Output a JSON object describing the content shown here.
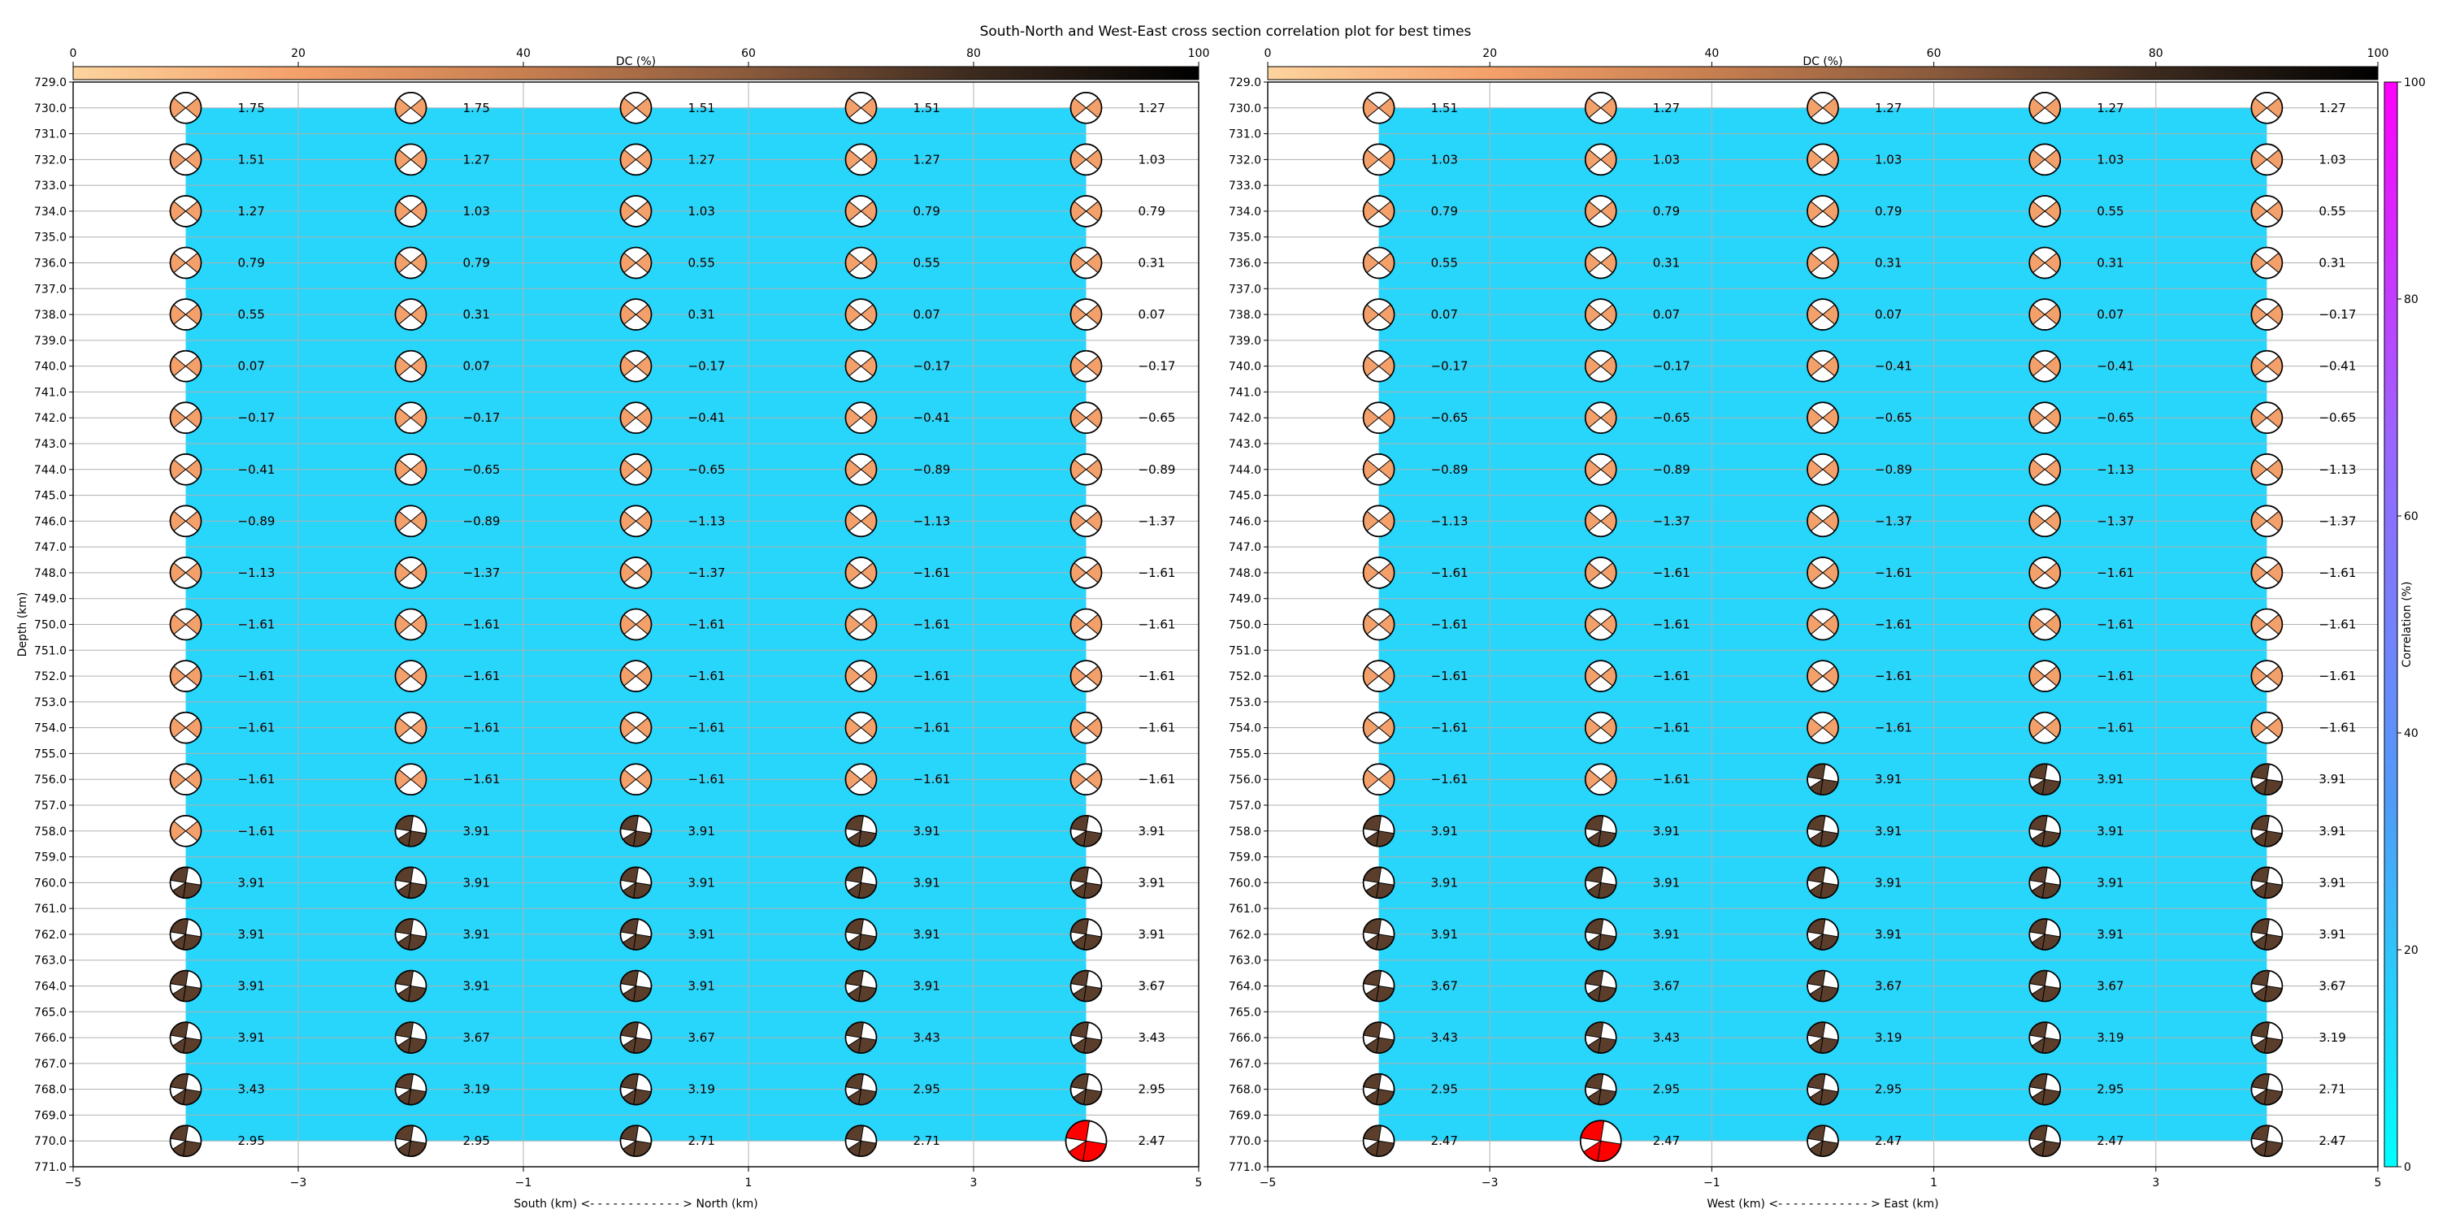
{
  "title": "South-North and West-East cross section correlation plot for best times",
  "colorbars": {
    "dc_label": "DC (%)",
    "dc_ticks": [
      "0",
      "20",
      "40",
      "60",
      "80",
      "100"
    ],
    "dc_colors": [
      "#fdd49e",
      "#f4a06a",
      "#c77f50",
      "#8a5a3c",
      "#3c2a1e",
      "#000000"
    ],
    "corr_label": "Correlation (%)",
    "corr_ticks": [
      "0",
      "20",
      "40",
      "60",
      "80",
      "100"
    ],
    "corr_colors": [
      "#00ffff",
      "#4f9cf8",
      "#9966ff",
      "#ff00ff"
    ]
  },
  "colors": {
    "section_fill": "#29d6fb",
    "beachball_light": "#f4a06a",
    "beachball_dark": "#5a3e2b",
    "beachball_best": "#ff0000"
  },
  "chart_data": [
    {
      "type": "scatter",
      "title": "South-North and West-East cross section correlation plot for best times",
      "xlabel": "South (km) <- - - - - - - - - - - - > North (km)",
      "ylabel": "Depth (km)",
      "xlim": [
        -5,
        5
      ],
      "ylim": [
        771,
        729
      ],
      "x_ticks": [
        "-5",
        "-3",
        "-1",
        "1",
        "3",
        "5"
      ],
      "x_tick_values": [
        -5,
        -3,
        -1,
        1,
        3,
        5
      ],
      "y_ticks": [
        "729.0",
        "730.0",
        "731.0",
        "732.0",
        "733.0",
        "734.0",
        "735.0",
        "736.0",
        "737.0",
        "738.0",
        "739.0",
        "740.0",
        "741.0",
        "742.0",
        "743.0",
        "744.0",
        "745.0",
        "746.0",
        "747.0",
        "748.0",
        "749.0",
        "750.0",
        "751.0",
        "752.0",
        "753.0",
        "754.0",
        "755.0",
        "756.0",
        "757.0",
        "758.0",
        "759.0",
        "760.0",
        "761.0",
        "762.0",
        "763.0",
        "764.0",
        "765.0",
        "766.0",
        "767.0",
        "768.0",
        "769.0",
        "770.0",
        "771.0"
      ],
      "grid": true,
      "columns_x": [
        -4,
        -2,
        0,
        2,
        4
      ],
      "depths": [
        730,
        732,
        734,
        736,
        738,
        740,
        742,
        744,
        746,
        748,
        750,
        752,
        754,
        756,
        758,
        760,
        762,
        764,
        766,
        768,
        770
      ],
      "labels": [
        [
          "1.75",
          "1.75",
          "1.51",
          "1.51",
          "1.27"
        ],
        [
          "1.51",
          "1.27",
          "1.27",
          "1.27",
          "1.03"
        ],
        [
          "1.27",
          "1.03",
          "1.03",
          "0.79",
          "0.79"
        ],
        [
          "0.79",
          "0.79",
          "0.55",
          "0.55",
          "0.31"
        ],
        [
          "0.55",
          "0.31",
          "0.31",
          "0.07",
          "0.07"
        ],
        [
          "0.07",
          "0.07",
          "-0.17",
          "-0.17",
          "-0.17"
        ],
        [
          "-0.17",
          "-0.17",
          "-0.41",
          "-0.41",
          "-0.65"
        ],
        [
          "-0.41",
          "-0.65",
          "-0.65",
          "-0.89",
          "-0.89"
        ],
        [
          "-0.89",
          "-0.89",
          "-1.13",
          "-1.13",
          "-1.37"
        ],
        [
          "-1.13",
          "-1.37",
          "-1.37",
          "-1.61",
          "-1.61"
        ],
        [
          "-1.61",
          "-1.61",
          "-1.61",
          "-1.61",
          "-1.61"
        ],
        [
          "-1.61",
          "-1.61",
          "-1.61",
          "-1.61",
          "-1.61"
        ],
        [
          "-1.61",
          "-1.61",
          "-1.61",
          "-1.61",
          "-1.61"
        ],
        [
          "-1.61",
          "-1.61",
          "-1.61",
          "-1.61",
          "-1.61"
        ],
        [
          "-1.61",
          "3.91",
          "3.91",
          "3.91",
          "3.91"
        ],
        [
          "3.91",
          "3.91",
          "3.91",
          "3.91",
          "3.91"
        ],
        [
          "3.91",
          "3.91",
          "3.91",
          "3.91",
          "3.91"
        ],
        [
          "3.91",
          "3.91",
          "3.91",
          "3.91",
          "3.67"
        ],
        [
          "3.91",
          "3.67",
          "3.67",
          "3.43",
          "3.43"
        ],
        [
          "3.43",
          "3.19",
          "3.19",
          "2.95",
          "2.95"
        ],
        [
          "2.95",
          "2.95",
          "2.71",
          "2.71",
          "2.47"
        ]
      ],
      "best": [
        20,
        4
      ]
    },
    {
      "type": "scatter",
      "xlabel": "West (km) <- - - - - - - - - - - - > East (km)",
      "xlim": [
        -5,
        5
      ],
      "ylim": [
        771,
        729
      ],
      "x_ticks": [
        "-5",
        "-3",
        "-1",
        "1",
        "3",
        "5"
      ],
      "x_tick_values": [
        -5,
        -3,
        -1,
        1,
        3,
        5
      ],
      "y_ticks": [
        "729.0",
        "730.0",
        "731.0",
        "732.0",
        "733.0",
        "734.0",
        "735.0",
        "736.0",
        "737.0",
        "738.0",
        "739.0",
        "740.0",
        "741.0",
        "742.0",
        "743.0",
        "744.0",
        "745.0",
        "746.0",
        "747.0",
        "748.0",
        "749.0",
        "750.0",
        "751.0",
        "752.0",
        "753.0",
        "754.0",
        "755.0",
        "756.0",
        "757.0",
        "758.0",
        "759.0",
        "760.0",
        "761.0",
        "762.0",
        "763.0",
        "764.0",
        "765.0",
        "766.0",
        "767.0",
        "768.0",
        "769.0",
        "770.0",
        "771.0"
      ],
      "grid": true,
      "columns_x": [
        -4,
        -2,
        0,
        2,
        4
      ],
      "depths": [
        730,
        732,
        734,
        736,
        738,
        740,
        742,
        744,
        746,
        748,
        750,
        752,
        754,
        756,
        758,
        760,
        762,
        764,
        766,
        768,
        770
      ],
      "labels": [
        [
          "1.51",
          "1.27",
          "1.27",
          "1.27",
          "1.27"
        ],
        [
          "1.03",
          "1.03",
          "1.03",
          "1.03",
          "1.03"
        ],
        [
          "0.79",
          "0.79",
          "0.79",
          "0.55",
          "0.55"
        ],
        [
          "0.55",
          "0.31",
          "0.31",
          "0.31",
          "0.31"
        ],
        [
          "0.07",
          "0.07",
          "0.07",
          "0.07",
          "-0.17"
        ],
        [
          "-0.17",
          "-0.17",
          "-0.41",
          "-0.41",
          "-0.41"
        ],
        [
          "-0.65",
          "-0.65",
          "-0.65",
          "-0.65",
          "-0.65"
        ],
        [
          "-0.89",
          "-0.89",
          "-0.89",
          "-1.13",
          "-1.13"
        ],
        [
          "-1.13",
          "-1.37",
          "-1.37",
          "-1.37",
          "-1.37"
        ],
        [
          "-1.61",
          "-1.61",
          "-1.61",
          "-1.61",
          "-1.61"
        ],
        [
          "-1.61",
          "-1.61",
          "-1.61",
          "-1.61",
          "-1.61"
        ],
        [
          "-1.61",
          "-1.61",
          "-1.61",
          "-1.61",
          "-1.61"
        ],
        [
          "-1.61",
          "-1.61",
          "-1.61",
          "-1.61",
          "-1.61"
        ],
        [
          "-1.61",
          "-1.61",
          "3.91",
          "3.91",
          "3.91"
        ],
        [
          "3.91",
          "3.91",
          "3.91",
          "3.91",
          "3.91"
        ],
        [
          "3.91",
          "3.91",
          "3.91",
          "3.91",
          "3.91"
        ],
        [
          "3.91",
          "3.91",
          "3.91",
          "3.91",
          "3.91"
        ],
        [
          "3.67",
          "3.67",
          "3.67",
          "3.67",
          "3.67"
        ],
        [
          "3.43",
          "3.43",
          "3.19",
          "3.19",
          "3.19"
        ],
        [
          "2.95",
          "2.95",
          "2.95",
          "2.95",
          "2.71"
        ],
        [
          "2.47",
          "2.47",
          "2.47",
          "2.47",
          "2.47"
        ]
      ],
      "best": [
        20,
        1
      ]
    }
  ]
}
